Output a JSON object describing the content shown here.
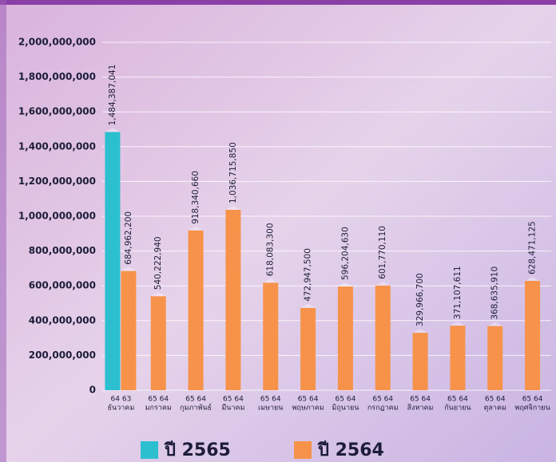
{
  "chart_data": {
    "type": "bar",
    "categories": [
      [
        "64 63",
        "ธันวาคม"
      ],
      [
        "65 64",
        "มกราคม"
      ],
      [
        "65 64",
        "กุมภาพันธ์"
      ],
      [
        "65 64",
        "มีนาคม"
      ],
      [
        "65 64",
        "เมษายน"
      ],
      [
        "65 64",
        "พฤษภาคม"
      ],
      [
        "65 64",
        "มิถุนายน"
      ],
      [
        "65 64",
        "กรกฎาคม"
      ],
      [
        "65 64",
        "สิงหาคม"
      ],
      [
        "65 64",
        "กันยายน"
      ],
      [
        "65 64",
        "ตุลาคม"
      ],
      [
        "65 64",
        "พฤศจิกายน"
      ]
    ],
    "series": [
      {
        "name": "ปี 2565",
        "color": "#2bbfcf",
        "values": [
          1484387041,
          null,
          null,
          null,
          null,
          null,
          null,
          null,
          null,
          null,
          null,
          null
        ],
        "value_labels": [
          "1,484,387,041",
          null,
          null,
          null,
          null,
          null,
          null,
          null,
          null,
          null,
          null,
          null
        ]
      },
      {
        "name": "ปี 2564",
        "color": "#f7924a",
        "values": [
          684962200,
          540222940,
          918340660,
          1036715850,
          618083300,
          472947500,
          596204630,
          601770110,
          329966700,
          371107611,
          368635910,
          628471125
        ],
        "value_labels": [
          "684,962,200",
          "540,222,940",
          "918,340,660",
          "1,036,715,850",
          "618,083,300",
          "472,947,500",
          "596,204,630",
          "601,770,110",
          "329,966,700",
          "371,107,611",
          "368,635,910",
          "628,471,125"
        ]
      }
    ],
    "ylim": [
      0,
      2000000000
    ],
    "yticks": [
      0,
      {
        "value": 200000000,
        "label": "200,000,000"
      },
      {
        "value": 400000000,
        "label": "400,000,000"
      },
      {
        "value": 600000000,
        "label": "600,000,000"
      },
      {
        "value": 800000000,
        "label": "800,000,000"
      },
      {
        "value": 1000000000,
        "label": "1,000,000,000"
      },
      {
        "value": 1200000000,
        "label": "1,200,000,000"
      },
      {
        "value": 1400000000,
        "label": "1,400,000,000"
      },
      {
        "value": 1600000000,
        "label": "1,600,000,000"
      },
      {
        "value": 1800000000,
        "label": "1,800,000,000"
      },
      {
        "value": 2000000000,
        "label": "2,000,000,000"
      }
    ],
    "grid": true
  }
}
